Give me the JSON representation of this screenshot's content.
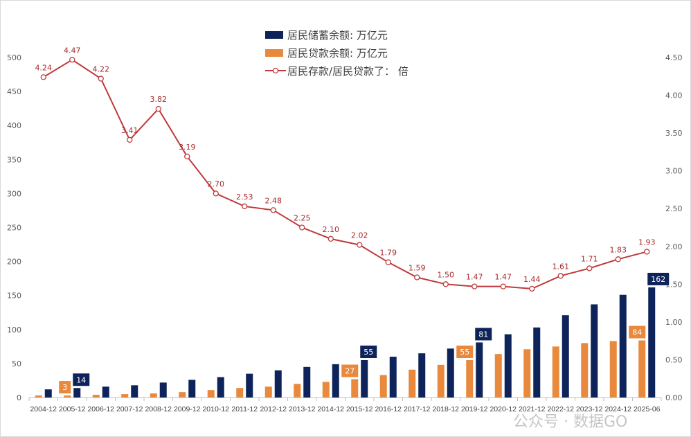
{
  "chart_data": {
    "type": "bar+line",
    "categories": [
      "2004-12",
      "2005-12",
      "2006-12",
      "2007-12",
      "2008-12",
      "2009-12",
      "2010-12",
      "2011-12",
      "2012-12",
      "2013-12",
      "2014-12",
      "2015-12",
      "2016-12",
      "2017-12",
      "2018-12",
      "2019-12",
      "2020-12",
      "2021-12",
      "2022-12",
      "2023-12",
      "2024-12",
      "2025-06"
    ],
    "series": [
      {
        "name": "居民储蓄余额: 万亿元",
        "type": "bar",
        "axis": "left",
        "color": "#0d2359",
        "values": [
          12,
          14,
          16,
          18,
          22,
          26,
          30,
          35,
          40,
          45,
          49,
          55,
          60,
          65,
          72,
          81,
          93,
          103,
          121,
          137,
          151,
          162
        ],
        "labeled": {
          "1": "14",
          "11": "55",
          "15": "81",
          "21": "162"
        }
      },
      {
        "name": "居民贷款余额: 万亿元",
        "type": "bar",
        "axis": "left",
        "color": "#e8893d",
        "values": [
          3,
          3,
          4,
          5,
          6,
          8,
          11,
          14,
          16,
          20,
          23,
          27,
          33,
          41,
          48,
          55,
          64,
          71,
          75,
          80,
          83,
          84
        ],
        "labeled": {
          "1": "3",
          "11": "27",
          "15": "55",
          "21": "84"
        }
      },
      {
        "name": "居民存款/居民贷款了： 倍",
        "type": "line",
        "axis": "right",
        "color": "#c0393b",
        "values": [
          4.24,
          4.47,
          4.22,
          3.41,
          3.82,
          3.19,
          2.7,
          2.53,
          2.48,
          2.25,
          2.1,
          2.02,
          1.79,
          1.59,
          1.5,
          1.47,
          1.47,
          1.44,
          1.61,
          1.71,
          1.83,
          1.93
        ],
        "labels": [
          "4.24",
          "4.47",
          "4.22",
          "3.41",
          "3.82",
          "3.19",
          "2.70",
          "2.53",
          "2.48",
          "2.25",
          "2.10",
          "2.02",
          "1.79",
          "1.59",
          "1.50",
          "1.47",
          "1.47",
          "1.44",
          "1.61",
          "1.71",
          "1.83",
          "1.93"
        ]
      }
    ],
    "ylim_left": [
      0,
      500
    ],
    "yticks_left": [
      "0",
      "50",
      "100",
      "150",
      "200",
      "250",
      "300",
      "350",
      "400",
      "450",
      "500"
    ],
    "ylim_right": [
      0,
      4.5
    ],
    "yticks_right": [
      "0.00",
      "0.50",
      "1.00",
      "1.50",
      "2.00",
      "2.50",
      "3.00",
      "3.50",
      "4.00",
      "4.50"
    ],
    "legend": "top-center",
    "grid": false
  },
  "watermark": "公众号 · 数据GO"
}
